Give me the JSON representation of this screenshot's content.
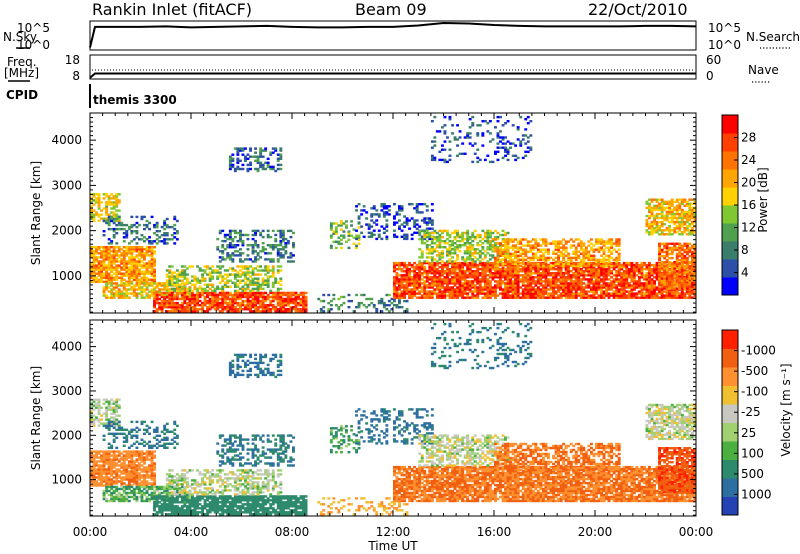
{
  "header": {
    "site": "Rankin Inlet (fitACF)",
    "beam": "Beam 09",
    "date": "22/Oct/2010"
  },
  "side_labels": {
    "nsky": "N.Sky",
    "nsearch": "N.Search",
    "freq_line1": "Freq.",
    "freq_line2": "[MHz]",
    "nave": "Nave",
    "cpid": "CPID"
  },
  "cpid_text": "themis 3300",
  "x_axis": {
    "label": "Time UT",
    "ticks": [
      "00:00",
      "04:00",
      "08:00",
      "12:00",
      "16:00",
      "20:00",
      "00:00"
    ]
  },
  "chart_data": [
    {
      "type": "line",
      "name": "nsky-nsearch",
      "y_ticks_left": [
        "10^5",
        "10^0"
      ],
      "y_ticks_right": [
        "10^5",
        "10^0"
      ],
      "x_hours": [
        0,
        0.2,
        1,
        2,
        3,
        4,
        5,
        6,
        7,
        8,
        9,
        10,
        11,
        12,
        13,
        14,
        15,
        16,
        17,
        18,
        19,
        20,
        21,
        22,
        23,
        24
      ],
      "values_log10": [
        0.3,
        4.5,
        4.5,
        4.5,
        4.6,
        4.4,
        4.5,
        4.6,
        4.7,
        4.5,
        4.4,
        4.4,
        4.5,
        4.5,
        4.8,
        5.3,
        5.2,
        4.9,
        4.7,
        4.6,
        4.6,
        4.6,
        4.6,
        4.7,
        4.7,
        4.6
      ]
    },
    {
      "type": "line",
      "name": "freq-nave",
      "y_ticks_left": [
        "18",
        "8"
      ],
      "y_ticks_right": [
        "60",
        "0"
      ],
      "x_hours": [
        0,
        0.2,
        24
      ],
      "freq_mhz": [
        8.5,
        10.3,
        10.3
      ],
      "ylim": [
        8,
        18
      ]
    },
    {
      "type": "heatmap",
      "name": "power",
      "ylabel": "Slant Range [km]",
      "ylim": [
        180,
        4600
      ],
      "y_ticks": [
        1000,
        2000,
        3000,
        4000
      ],
      "colorbar": {
        "label": "Power [dB]",
        "ticks": [
          "4",
          "8",
          "12",
          "16",
          "20",
          "24",
          "28"
        ],
        "colors": [
          "#0000ff",
          "#2c4fa8",
          "#3a7d6b",
          "#4fa04f",
          "#7fc832",
          "#ffd100",
          "#ffa500",
          "#ff7300",
          "#ff4000",
          "#ff0000"
        ]
      }
    },
    {
      "type": "heatmap",
      "name": "velocity",
      "ylabel": "Slant Range [km]",
      "ylim": [
        180,
        4600
      ],
      "y_ticks": [
        1000,
        2000,
        3000,
        4000
      ],
      "colorbar": {
        "label": "Velocity [m s⁻¹]",
        "ticks": [
          "1000",
          "500",
          "100",
          "25",
          "-25",
          "-100",
          "-500",
          "-1000"
        ],
        "colors": [
          "#2442b4",
          "#2c6fa0",
          "#2e8a6c",
          "#4cb040",
          "#a0d070",
          "#c8c8c0",
          "#f0c030",
          "#ff9030",
          "#f06010",
          "#ff2000"
        ]
      }
    }
  ],
  "echo_regions": [
    {
      "t0": 0.0,
      "t1": 2.6,
      "r0": 850,
      "r1": 1650,
      "p": 22,
      "v": -250,
      "d": 0.8
    },
    {
      "t0": 0.0,
      "t1": 1.2,
      "r0": 2200,
      "r1": 2800,
      "p": 18,
      "v": 30,
      "d": 0.6
    },
    {
      "t0": 0.5,
      "t1": 4.0,
      "r0": 500,
      "r1": 850,
      "p": 20,
      "v": 80,
      "d": 0.75
    },
    {
      "t0": 0.5,
      "t1": 3.5,
      "r0": 1700,
      "r1": 2300,
      "p": 8,
      "v": 300,
      "d": 0.35
    },
    {
      "t0": 2.5,
      "t1": 8.5,
      "r0": 200,
      "r1": 650,
      "p": 27,
      "v": 180,
      "d": 0.85
    },
    {
      "t0": 3.0,
      "t1": 7.5,
      "r0": 650,
      "r1": 1200,
      "p": 16,
      "v": 20,
      "d": 0.5
    },
    {
      "t0": 5.0,
      "t1": 8.0,
      "r0": 1300,
      "r1": 2000,
      "p": 9,
      "v": 300,
      "d": 0.35
    },
    {
      "t0": 5.5,
      "t1": 7.5,
      "r0": 3300,
      "r1": 3800,
      "p": 8,
      "v": 400,
      "d": 0.35
    },
    {
      "t0": 9.5,
      "t1": 10.6,
      "r0": 1600,
      "r1": 2200,
      "p": 14,
      "v": 100,
      "d": 0.4
    },
    {
      "t0": 9.0,
      "t1": 12.5,
      "r0": 200,
      "r1": 600,
      "p": 10,
      "v": -100,
      "d": 0.25
    },
    {
      "t0": 10.5,
      "t1": 13.5,
      "r0": 1800,
      "r1": 2600,
      "p": 6,
      "v": 400,
      "d": 0.3
    },
    {
      "t0": 12.0,
      "t1": 24.0,
      "r0": 500,
      "r1": 1300,
      "p": 27,
      "v": -300,
      "d": 0.85
    },
    {
      "t0": 13.0,
      "t1": 16.5,
      "r0": 1300,
      "r1": 2000,
      "p": 16,
      "v": 10,
      "d": 0.55
    },
    {
      "t0": 16.0,
      "t1": 21.0,
      "r0": 1200,
      "r1": 1800,
      "p": 22,
      "v": -300,
      "d": 0.6
    },
    {
      "t0": 13.5,
      "t1": 17.5,
      "r0": 3500,
      "r1": 4500,
      "p": 6,
      "v": 300,
      "d": 0.2
    },
    {
      "t0": 22.0,
      "t1": 24.0,
      "r0": 1900,
      "r1": 2700,
      "p": 20,
      "v": 10,
      "d": 0.7
    },
    {
      "t0": 22.5,
      "t1": 24.0,
      "r0": 700,
      "r1": 1700,
      "p": 25,
      "v": -600,
      "d": 0.8
    }
  ]
}
